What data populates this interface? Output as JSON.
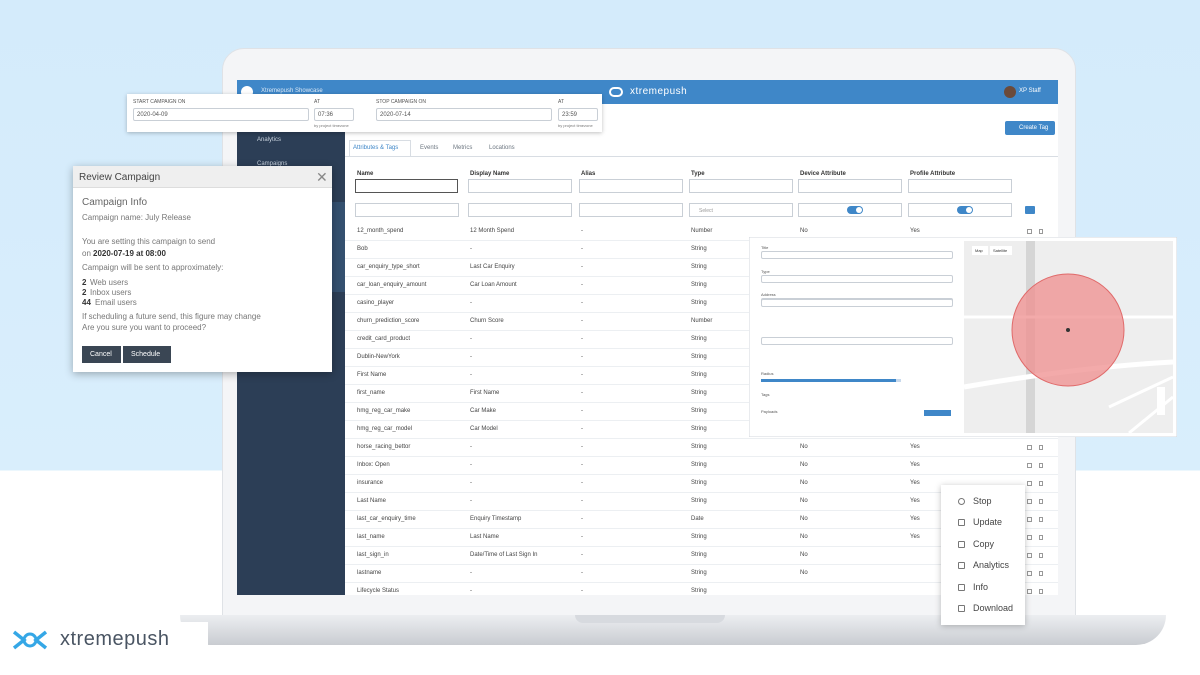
{
  "header": {
    "brand": "xtremepush",
    "project": "Xtremepush Showcase",
    "user": "XP Staff"
  },
  "sidebar": [
    "Analytics",
    "Campaigns"
  ],
  "date_bar": {
    "start_label": "START CAMPAIGN ON",
    "start_date": "2020-04-09",
    "start_at_label": "AT",
    "start_time": "07:36",
    "start_note": "by project timezone",
    "stop_label": "STOP CAMPAIGN ON",
    "stop_date": "2020-07-14",
    "stop_at_label": "AT",
    "stop_time": "23:59",
    "stop_note": "by project timezone"
  },
  "create_tag_button": "Create Tag",
  "tabs": [
    "Attributes & Tags",
    "Events",
    "Metrics",
    "Locations"
  ],
  "table": {
    "columns": [
      "Name",
      "Display Name",
      "Alias",
      "Type",
      "Device Attribute",
      "Profile Attribute"
    ],
    "type_filter_placeholder": "Select",
    "rows": [
      [
        "12_month_spend",
        "12 Month Spend",
        "-",
        "Number",
        "No",
        "Yes"
      ],
      [
        "Bob",
        "-",
        "-",
        "String"
      ],
      [
        "car_enquiry_type_short",
        "Last Car Enquiry",
        "-",
        "String"
      ],
      [
        "car_loan_enquiry_amount",
        "Car Loan Amount",
        "-",
        "String"
      ],
      [
        "casino_player",
        "-",
        "-",
        "String"
      ],
      [
        "churn_prediction_score",
        "Churn Score",
        "-",
        "Number"
      ],
      [
        "credit_card_product",
        "-",
        "-",
        "String"
      ],
      [
        "Dublin-NewYork",
        "-",
        "-",
        "String"
      ],
      [
        "First Name",
        "-",
        "-",
        "String"
      ],
      [
        "first_name",
        "First Name",
        "-",
        "String"
      ],
      [
        "hmg_reg_car_make",
        "Car Make",
        "-",
        "String"
      ],
      [
        "hmg_reg_car_model",
        "Car Model",
        "-",
        "String"
      ],
      [
        "horse_racing_bettor",
        "-",
        "-",
        "String",
        "No",
        "Yes"
      ],
      [
        "Inbox: Open",
        "-",
        "-",
        "String",
        "No",
        "Yes"
      ],
      [
        "insurance",
        "-",
        "-",
        "String",
        "No",
        "Yes"
      ],
      [
        "Last Name",
        "-",
        "-",
        "String",
        "No",
        "Yes"
      ],
      [
        "last_car_enquiry_time",
        "Enquiry Timestamp",
        "-",
        "Date",
        "No",
        "Yes"
      ],
      [
        "last_name",
        "Last Name",
        "-",
        "String",
        "No",
        "Yes"
      ],
      [
        "last_sign_in",
        "Date/Time of Last Sign In",
        "-",
        "String",
        "No"
      ],
      [
        "lastname",
        "-",
        "-",
        "String",
        "No"
      ],
      [
        "Lifecycle Status",
        "-",
        "-",
        "String"
      ]
    ]
  },
  "review_modal": {
    "title": "Review Campaign",
    "section": "Campaign Info",
    "campaign_name": "Campaign name: July Release",
    "send_line": "You are setting this campaign to send",
    "send_on_prefix": "on",
    "send_datetime": "2020-07-19 at 08:00",
    "reach_line": "Campaign will be sent to approximately:",
    "counts": [
      {
        "count": "2",
        "label": "Web users"
      },
      {
        "count": "2",
        "label": "Inbox users"
      },
      {
        "count": "44",
        "label": "Email users"
      }
    ],
    "note": "If scheduling a future send, this figure may change",
    "question": "Are you sure you want to proceed?",
    "buttons": [
      "Cancel",
      "Schedule"
    ]
  },
  "location_panel": {
    "fields": [
      "Title",
      "Type",
      "Address",
      "Radius",
      "Tags",
      "Payloads"
    ],
    "map_tabs": [
      "Map",
      "Satellite"
    ]
  },
  "context_menu": [
    "Stop",
    "Update",
    "Copy",
    "Analytics",
    "Info",
    "Download"
  ],
  "footer_logo": "xtremepush"
}
